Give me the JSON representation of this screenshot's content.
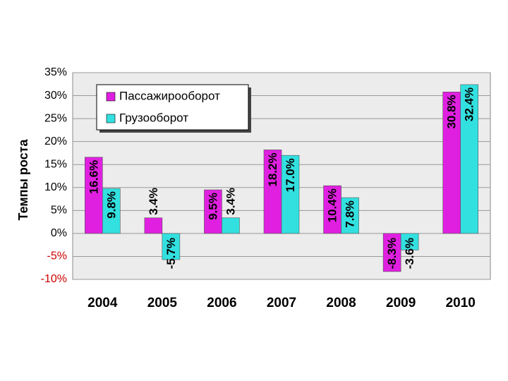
{
  "chart_data": {
    "type": "bar",
    "y_label": "Темпы роста",
    "categories": [
      "2004",
      "2005",
      "2006",
      "2007",
      "2008",
      "2009",
      "2010"
    ],
    "series": [
      {
        "name": "Пассажирооборот",
        "color": "#e020e0",
        "values": [
          16.6,
          3.4,
          9.5,
          18.2,
          10.4,
          -8.3,
          30.8
        ],
        "value_labels": [
          "16.6%",
          "3.4%",
          "9.5%",
          "18.2%",
          "10.4%",
          "-8.3%",
          "30.8%"
        ]
      },
      {
        "name": "Грузооборот",
        "color": "#33e0e0",
        "values": [
          9.8,
          -5.7,
          3.4,
          17.0,
          7.8,
          -3.6,
          32.4
        ],
        "value_labels": [
          "9.8%",
          "-5.7%",
          "3.4%",
          "17.0%",
          "7.8%",
          "-3.6%",
          "32.4%"
        ]
      }
    ],
    "ylim": [
      -10,
      35
    ],
    "yticks": [
      {
        "value": -10,
        "label": "-10%"
      },
      {
        "value": -5,
        "label": "-5%"
      },
      {
        "value": 0,
        "label": "0%"
      },
      {
        "value": 5,
        "label": "5%"
      },
      {
        "value": 10,
        "label": "10%"
      },
      {
        "value": 15,
        "label": "15%"
      },
      {
        "value": 20,
        "label": "20%"
      },
      {
        "value": 25,
        "label": "25%"
      },
      {
        "value": 30,
        "label": "30%"
      },
      {
        "value": 35,
        "label": "35%"
      }
    ],
    "grid": true,
    "legend": "top-left"
  }
}
